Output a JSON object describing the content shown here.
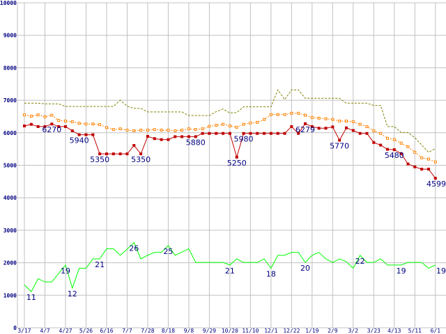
{
  "chart_data": {
    "type": "line",
    "title": "",
    "ylim": [
      0,
      10000
    ],
    "yticks": [
      "0",
      "1000",
      "2000",
      "3000",
      "4000",
      "5000",
      "6000",
      "7000",
      "8000",
      "9000",
      "10000"
    ],
    "xtick_labels": [
      "3/17",
      "4/7",
      "4/27",
      "5/26",
      "6/16",
      "7/7",
      "7/28",
      "8/18",
      "9/8",
      "9/29",
      "10/20",
      "11/10",
      "12/1",
      "12/22",
      "1/19",
      "2/9",
      "3/2",
      "3/23",
      "4/13",
      "5/11",
      "6/1"
    ],
    "grid": true,
    "colors": {
      "price": "#c00000",
      "ma_short": "#ff8000",
      "ma_long": "#808000",
      "volume": "#00ff00",
      "grid": "#c0c0c0",
      "label": "#000080"
    },
    "series": [
      {
        "name": "price",
        "values": [
          6210,
          6260,
          6190,
          6190,
          6270,
          6190,
          6190,
          6060,
          5940,
          5940,
          5940,
          5350,
          5350,
          5350,
          5350,
          5350,
          5610,
          5350,
          5890,
          5820,
          5790,
          5790,
          5880,
          5880,
          5880,
          5880,
          5980,
          5980,
          5980,
          5980,
          5980,
          5250,
          5980,
          5980,
          5980,
          5980,
          5980,
          5980,
          5980,
          6190,
          5980,
          6279,
          6190,
          6140,
          6140,
          6180,
          5770,
          6150,
          6070,
          5980,
          5980,
          5700,
          5620,
          5490,
          5480,
          5360,
          5040,
          4950,
          4880,
          4880,
          4599
        ]
      },
      {
        "name": "ma_short",
        "values": [
          6550,
          6510,
          6550,
          6490,
          6540,
          6380,
          6360,
          6340,
          6290,
          6270,
          6270,
          6250,
          6160,
          6100,
          6120,
          6080,
          6060,
          6080,
          6080,
          6100,
          6080,
          6080,
          6060,
          6080,
          6120,
          6100,
          6120,
          6200,
          6230,
          6260,
          6210,
          6170,
          6260,
          6300,
          6320,
          6410,
          6560,
          6560,
          6560,
          6600,
          6600,
          6540,
          6470,
          6450,
          6430,
          6410,
          6360,
          6360,
          6340,
          6260,
          6190,
          6060,
          5980,
          5830,
          5790,
          5680,
          5570,
          5400,
          5230,
          5190,
          5100
        ]
      },
      {
        "name": "ma_long",
        "values": [
          6910,
          6910,
          6910,
          6890,
          6890,
          6890,
          6810,
          6810,
          6810,
          6810,
          6810,
          6810,
          6810,
          6810,
          7000,
          6820,
          6750,
          6750,
          6640,
          6640,
          6640,
          6640,
          6640,
          6640,
          6530,
          6530,
          6530,
          6530,
          6650,
          6730,
          6610,
          6620,
          6800,
          6800,
          6800,
          6800,
          6800,
          7320,
          7020,
          7320,
          7320,
          7060,
          7060,
          7060,
          7060,
          7060,
          7060,
          6910,
          6910,
          6910,
          6910,
          6840,
          6840,
          6190,
          6190,
          6010,
          6010,
          5850,
          5620,
          5400,
          5510
        ]
      },
      {
        "name": "volume",
        "values": [
          1320,
          1110,
          1510,
          1410,
          1410,
          1670,
          1930,
          1220,
          1830,
          1830,
          2120,
          2120,
          2430,
          2430,
          2230,
          2420,
          2620,
          2120,
          2230,
          2320,
          2320,
          2530,
          2230,
          2330,
          2430,
          2010,
          2010,
          2010,
          2010,
          2010,
          1930,
          2120,
          2010,
          2010,
          2010,
          2120,
          1830,
          2230,
          2230,
          2320,
          2320,
          2010,
          2230,
          2320,
          2120,
          2010,
          2120,
          2030,
          1830,
          2230,
          2010,
          2010,
          2120,
          1930,
          1930,
          1930,
          2010,
          2010,
          2010,
          1830,
          1930
        ]
      }
    ],
    "annotations": [
      {
        "series": "price",
        "index": 4,
        "text": "6270"
      },
      {
        "series": "price",
        "index": 8,
        "text": "5940"
      },
      {
        "series": "price",
        "index": 11,
        "text": "5350"
      },
      {
        "series": "price",
        "index": 17,
        "text": "5350"
      },
      {
        "series": "price",
        "index": 25,
        "text": "5880"
      },
      {
        "series": "price",
        "index": 31,
        "text": "5250"
      },
      {
        "series": "price",
        "index": 32,
        "text": "5980"
      },
      {
        "series": "price",
        "index": 41,
        "text": "6279"
      },
      {
        "series": "price",
        "index": 46,
        "text": "5770"
      },
      {
        "series": "price",
        "index": 54,
        "text": "5480"
      },
      {
        "series": "price",
        "index": 60,
        "text": "4599"
      },
      {
        "series": "volume",
        "index": 1,
        "text": "11"
      },
      {
        "series": "volume",
        "index": 6,
        "text": "19"
      },
      {
        "series": "volume",
        "index": 7,
        "text": "12"
      },
      {
        "series": "volume",
        "index": 11,
        "text": "21"
      },
      {
        "series": "volume",
        "index": 16,
        "text": "26"
      },
      {
        "series": "volume",
        "index": 21,
        "text": "25"
      },
      {
        "series": "volume",
        "index": 30,
        "text": "21"
      },
      {
        "series": "volume",
        "index": 36,
        "text": "18"
      },
      {
        "series": "volume",
        "index": 41,
        "text": "20"
      },
      {
        "series": "volume",
        "index": 49,
        "text": "22"
      },
      {
        "series": "volume",
        "index": 55,
        "text": "19"
      },
      {
        "series": "volume",
        "index": 60,
        "text": "19"
      }
    ]
  }
}
